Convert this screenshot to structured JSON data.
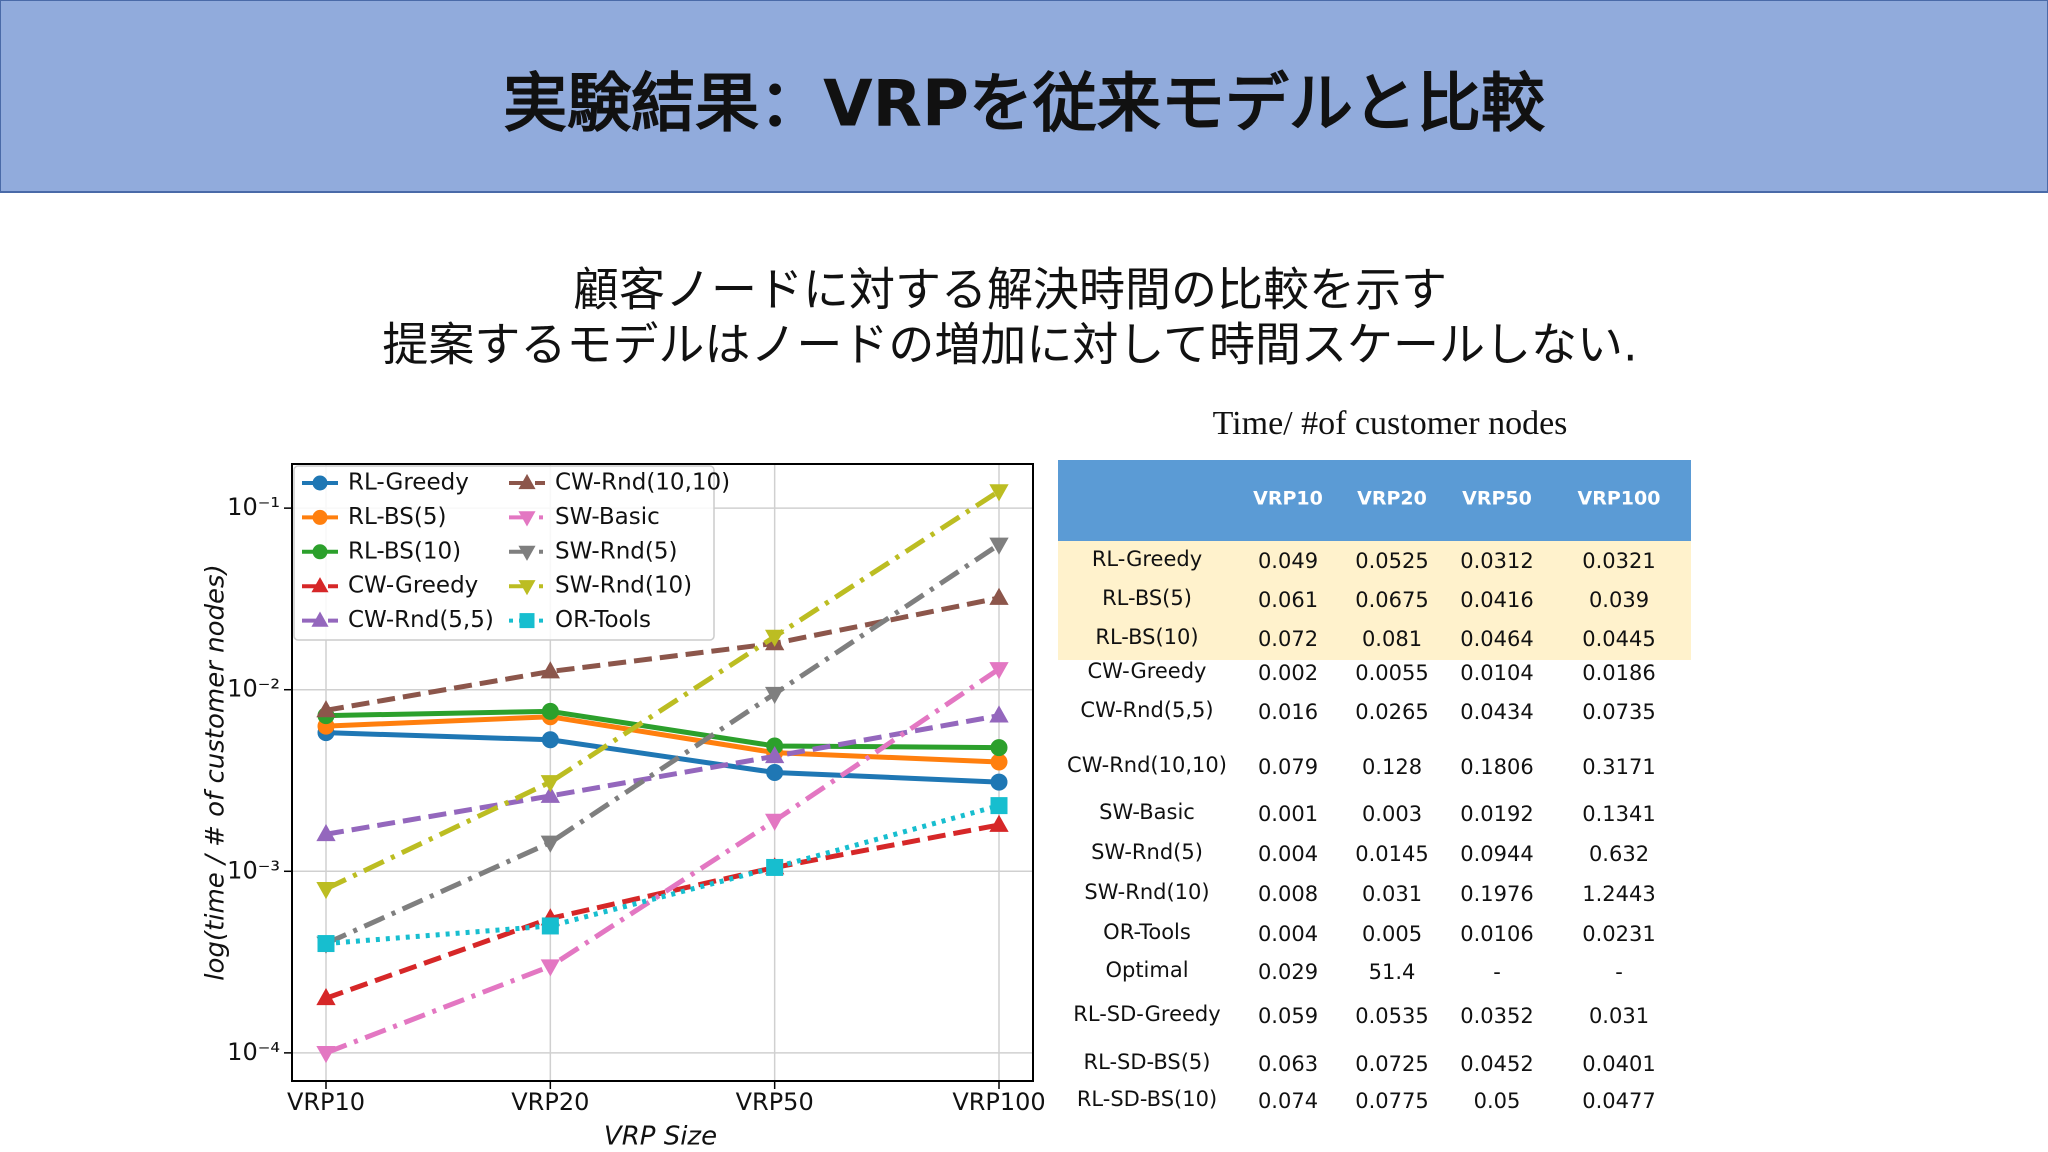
{
  "header": {
    "title": "実験結果：VRPを従来モデルと比較"
  },
  "subtitle": [
    "顧客ノードに対する解決時間の比較を示す",
    "提案するモデルはノードの増加に対して時間スケールしない."
  ],
  "chart_data": {
    "type": "line",
    "x_label": "VRP Size",
    "y_label": "log(time / # of customer nodes)",
    "categories": [
      "VRP10",
      "VRP20",
      "VRP50",
      "VRP100"
    ],
    "log_scale": true,
    "grid": true,
    "legend": "upper left",
    "ylim": [
      7e-05,
      0.175
    ],
    "yticks": [
      {
        "value": 0.0001,
        "label": "10⁻⁴"
      },
      {
        "value": 0.001,
        "label": "10⁻³"
      },
      {
        "value": 0.01,
        "label": "10⁻²"
      },
      {
        "value": 0.1,
        "label": "10⁻¹"
      }
    ],
    "series": [
      {
        "name": "RL-Greedy",
        "color": "#1f77b4",
        "style": "solid",
        "marker": "circle",
        "values": [
          0.0058,
          0.0053,
          0.0035,
          0.0031
        ]
      },
      {
        "name": "RL-BS(5)",
        "color": "#ff7f0e",
        "style": "solid",
        "marker": "circle",
        "values": [
          0.0063,
          0.0071,
          0.0045,
          0.004
        ]
      },
      {
        "name": "RL-BS(10)",
        "color": "#2ca02c",
        "style": "solid",
        "marker": "circle",
        "values": [
          0.0072,
          0.0076,
          0.0049,
          0.0048
        ]
      },
      {
        "name": "CW-Greedy",
        "color": "#d62728",
        "style": "dashed",
        "marker": "triangle-up",
        "values": [
          0.0002,
          0.00055,
          0.00105,
          0.0018
        ]
      },
      {
        "name": "CW-Rnd(5,5)",
        "color": "#9467bd",
        "style": "dashed",
        "marker": "triangle-up",
        "values": [
          0.0016,
          0.0026,
          0.0043,
          0.0072
        ]
      },
      {
        "name": "CW-Rnd(10,10)",
        "color": "#8c564b",
        "style": "dashed",
        "marker": "triangle-up",
        "values": [
          0.0077,
          0.0126,
          0.018,
          0.032
        ]
      },
      {
        "name": "SW-Basic",
        "color": "#e377c2",
        "style": "dashdot",
        "marker": "triangle-down",
        "values": [
          0.0001,
          0.0003,
          0.0019,
          0.013
        ]
      },
      {
        "name": "SW-Rnd(5)",
        "color": "#7f7f7f",
        "style": "dashdot",
        "marker": "triangle-down",
        "values": [
          0.0004,
          0.00144,
          0.0095,
          0.063
        ]
      },
      {
        "name": "SW-Rnd(10)",
        "color": "#bcbd22",
        "style": "dashdot",
        "marker": "triangle-down",
        "values": [
          0.0008,
          0.0031,
          0.0196,
          0.124
        ]
      },
      {
        "name": "OR-Tools",
        "color": "#17becf",
        "style": "dotted",
        "marker": "square",
        "values": [
          0.0004,
          0.0005,
          0.00105,
          0.0023
        ]
      }
    ]
  },
  "table": {
    "title": "Time/ #of customer nodes",
    "columns": [
      "VRP10",
      "VRP20",
      "VRP50",
      "VRP100"
    ],
    "highlighted_rows": 3,
    "rows": [
      {
        "label": "RL-Greedy",
        "cells": [
          "0.049",
          "0.0525",
          "0.0312",
          "0.0321"
        ]
      },
      {
        "label": "RL-BS(5)",
        "cells": [
          "0.061",
          "0.0675",
          "0.0416",
          "0.039"
        ]
      },
      {
        "label": "RL-BS(10)",
        "cells": [
          "0.072",
          "0.081",
          "0.0464",
          "0.0445"
        ]
      },
      {
        "label": "CW-Greedy",
        "cells": [
          "0.002",
          "0.0055",
          "0.0104",
          "0.0186"
        ]
      },
      {
        "label": "CW-Rnd(5,5)",
        "cells": [
          "0.016",
          "0.0265",
          "0.0434",
          "0.0735"
        ]
      },
      {
        "label": "CW-Rnd(10,10)",
        "cells": [
          "0.079",
          "0.128",
          "0.1806",
          "0.3171"
        ]
      },
      {
        "label": "SW-Basic",
        "cells": [
          "0.001",
          "0.003",
          "0.0192",
          "0.1341"
        ]
      },
      {
        "label": "SW-Rnd(5)",
        "cells": [
          "0.004",
          "0.0145",
          "0.0944",
          "0.632"
        ]
      },
      {
        "label": "SW-Rnd(10)",
        "cells": [
          "0.008",
          "0.031",
          "0.1976",
          "1.2443"
        ]
      },
      {
        "label": "OR-Tools",
        "cells": [
          "0.004",
          "0.005",
          "0.0106",
          "0.0231"
        ]
      },
      {
        "label": "Optimal",
        "cells": [
          "0.029",
          "51.4",
          "-",
          "-"
        ]
      },
      {
        "label": "RL-SD-Greedy",
        "cells": [
          "0.059",
          "0.0535",
          "0.0352",
          "0.031"
        ]
      },
      {
        "label": "RL-SD-BS(5)",
        "cells": [
          "0.063",
          "0.0725",
          "0.0452",
          "0.0401"
        ]
      },
      {
        "label": "RL-SD-BS(10)",
        "cells": [
          "0.074",
          "0.0775",
          "0.05",
          "0.0477"
        ]
      }
    ]
  }
}
